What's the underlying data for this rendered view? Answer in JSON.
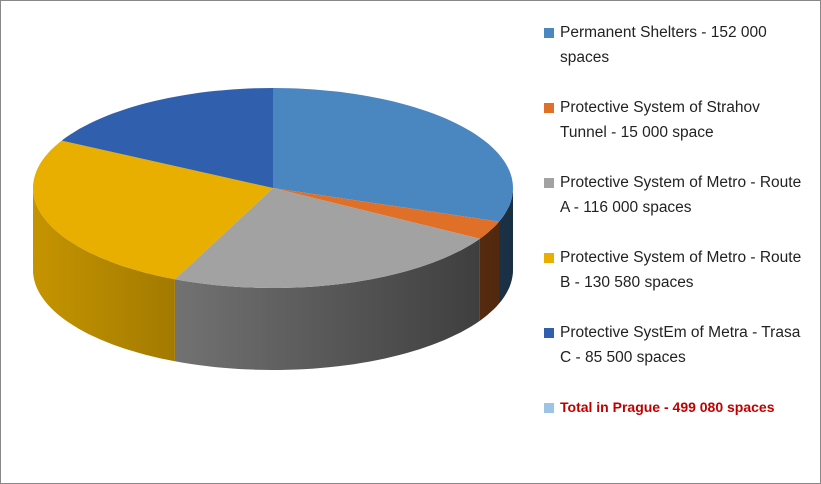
{
  "chart_data": {
    "type": "pie3d",
    "categories": [
      "Permanent Shelters - 152 000 spaces",
      "Protective System of Strahov Tunnel - 15 000 space",
      "Protective System of Metro - Route A - 116 000 spaces",
      "Protective System of Metro - Route B - 130 580 spaces",
      "Protective SystEm of Metra - Trasa C - 85 500 spaces",
      "Total in Prague - 499 080 spaces"
    ],
    "values": [
      152000,
      15000,
      116000,
      130580,
      85500,
      null
    ],
    "colors": [
      "#4a86c0",
      "#e07028",
      "#a2a2a2",
      "#e8ae00",
      "#3060ad",
      "#9dc3e6"
    ],
    "legend": "right"
  }
}
